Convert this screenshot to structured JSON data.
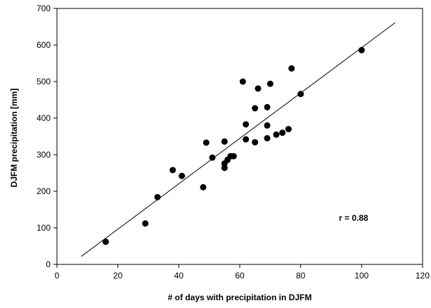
{
  "chart_data": {
    "type": "scatter",
    "title": "",
    "xlabel": "# of days with precipitation in DJFM",
    "ylabel": "DJFM precipitation [mm]",
    "xlim": [
      0,
      120
    ],
    "ylim": [
      0,
      700
    ],
    "xticks": [
      0,
      20,
      40,
      60,
      80,
      100,
      120
    ],
    "yticks": [
      0,
      100,
      200,
      300,
      400,
      500,
      600,
      700
    ],
    "grid": false,
    "points": [
      {
        "x": 16,
        "y": 62
      },
      {
        "x": 29,
        "y": 112
      },
      {
        "x": 33,
        "y": 184
      },
      {
        "x": 38,
        "y": 258
      },
      {
        "x": 41,
        "y": 242
      },
      {
        "x": 48,
        "y": 211
      },
      {
        "x": 49,
        "y": 333
      },
      {
        "x": 51,
        "y": 292
      },
      {
        "x": 55,
        "y": 264
      },
      {
        "x": 55,
        "y": 276
      },
      {
        "x": 55,
        "y": 336
      },
      {
        "x": 56,
        "y": 286
      },
      {
        "x": 57,
        "y": 296
      },
      {
        "x": 58,
        "y": 296
      },
      {
        "x": 61,
        "y": 500
      },
      {
        "x": 62,
        "y": 342
      },
      {
        "x": 62,
        "y": 383
      },
      {
        "x": 65,
        "y": 334
      },
      {
        "x": 65,
        "y": 427
      },
      {
        "x": 66,
        "y": 481
      },
      {
        "x": 69,
        "y": 345
      },
      {
        "x": 69,
        "y": 380
      },
      {
        "x": 69,
        "y": 430
      },
      {
        "x": 70,
        "y": 494
      },
      {
        "x": 72,
        "y": 355
      },
      {
        "x": 74,
        "y": 360
      },
      {
        "x": 76,
        "y": 370
      },
      {
        "x": 77,
        "y": 536
      },
      {
        "x": 80,
        "y": 466
      },
      {
        "x": 100,
        "y": 586
      }
    ],
    "regression_line": {
      "x": [
        8,
        111
      ],
      "y": [
        22,
        661
      ]
    },
    "annotation": "r = 0.88"
  }
}
